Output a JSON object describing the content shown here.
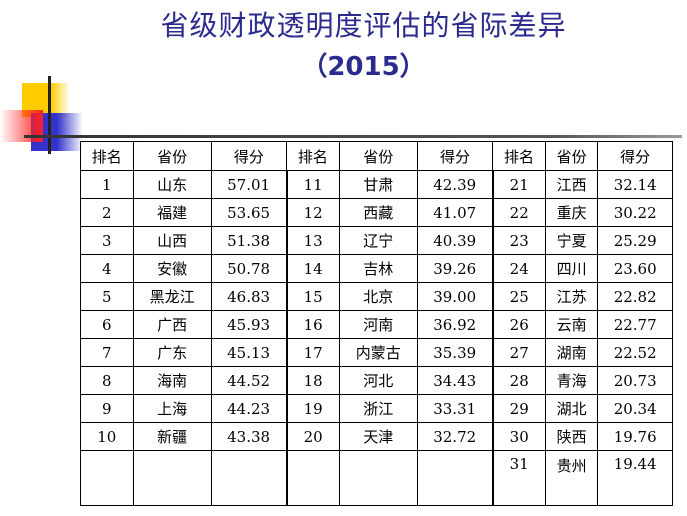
{
  "title": {
    "line1": "省级财政透明度评估的省际差异",
    "line2": "（2015）"
  },
  "table": {
    "headers": [
      "排名",
      "省份",
      "得分",
      "排名",
      "省份",
      "得分",
      "排名",
      "省份",
      "得分"
    ],
    "rows": [
      [
        [
          "1",
          "山东",
          "57.01"
        ],
        [
          "11",
          "甘肃",
          "42.39"
        ],
        [
          "21",
          "江西",
          "32.14"
        ]
      ],
      [
        [
          "2",
          "福建",
          "53.65"
        ],
        [
          "12",
          "西藏",
          "41.07"
        ],
        [
          "22",
          "重庆",
          "30.22"
        ]
      ],
      [
        [
          "3",
          "山西",
          "51.38"
        ],
        [
          "13",
          "辽宁",
          "40.39"
        ],
        [
          "23",
          "宁夏",
          "25.29"
        ]
      ],
      [
        [
          "4",
          "安徽",
          "50.78"
        ],
        [
          "14",
          "吉林",
          "39.26"
        ],
        [
          "24",
          "四川",
          "23.60"
        ]
      ],
      [
        [
          "5",
          "黑龙江",
          "46.83"
        ],
        [
          "15",
          "北京",
          "39.00"
        ],
        [
          "25",
          "江苏",
          "22.82"
        ]
      ],
      [
        [
          "6",
          "广西",
          "45.93"
        ],
        [
          "16",
          "河南",
          "36.92"
        ],
        [
          "26",
          "云南",
          "22.77"
        ]
      ],
      [
        [
          "7",
          "广东",
          "45.13"
        ],
        [
          "17",
          "内蒙古",
          "35.39"
        ],
        [
          "27",
          "湖南",
          "22.52"
        ]
      ],
      [
        [
          "8",
          "海南",
          "44.52"
        ],
        [
          "18",
          "河北",
          "34.43"
        ],
        [
          "28",
          "青海",
          "20.73"
        ]
      ],
      [
        [
          "9",
          "上海",
          "44.23"
        ],
        [
          "19",
          "浙江",
          "33.31"
        ],
        [
          "29",
          "湖北",
          "20.34"
        ]
      ],
      [
        [
          "10",
          "新疆",
          "43.38"
        ],
        [
          "20",
          "天津",
          "32.72"
        ],
        [
          "30",
          "陕西",
          "19.76"
        ]
      ],
      [
        [
          "",
          "",
          ""
        ],
        [
          "",
          "",
          ""
        ],
        [
          "31",
          "贵州",
          "19.44"
        ]
      ]
    ]
  }
}
